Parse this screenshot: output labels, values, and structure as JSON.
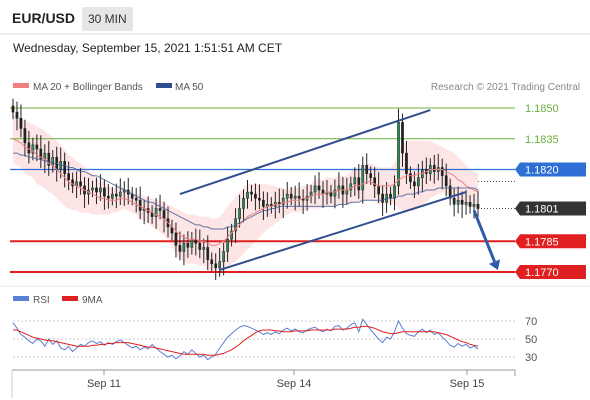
{
  "header": {
    "symbol": "EUR/USD",
    "timeframe": "30 MIN"
  },
  "subheader": {
    "datetime": "Wednesday, September 15, 2021 1:51:51 AM CET"
  },
  "legend_top": [
    {
      "label": "MA 20 + Bollinger Bands",
      "color": "#f08080"
    },
    {
      "label": "MA 50",
      "color": "#2f4f8f"
    }
  ],
  "credit": "Research © 2021 Trading Central",
  "legend_bottom": [
    {
      "label": "RSI",
      "color": "#5b7fd6"
    },
    {
      "label": "9MA",
      "color": "#e02020"
    }
  ],
  "colors": {
    "resistance": "#6aaf3a",
    "pivot": "#2e6fd6",
    "support": "#e02020",
    "price": "#333333"
  },
  "chart_data": [
    {
      "type": "candlestick",
      "x_ticks": [
        "Sep 11",
        "Sep 14",
        "Sep 15"
      ],
      "ylim": [
        1.1765,
        1.1855
      ],
      "levels": [
        {
          "value": 1.185,
          "label": "1.1850",
          "kind": "resistance"
        },
        {
          "value": 1.1835,
          "label": "1.1835",
          "kind": "resistance"
        },
        {
          "value": 1.182,
          "label": "1.1820",
          "kind": "pivot"
        },
        {
          "value": 1.1785,
          "label": "1.1785",
          "kind": "support"
        },
        {
          "value": 1.177,
          "label": "1.1770",
          "kind": "support"
        }
      ],
      "last_price": {
        "value": 1.1801,
        "label": "1.1801"
      },
      "closes": [
        1.1848,
        1.1845,
        1.184,
        1.1833,
        1.1828,
        1.1832,
        1.183,
        1.1825,
        1.1828,
        1.1822,
        1.1826,
        1.182,
        1.1824,
        1.1818,
        1.1815,
        1.1812,
        1.1814,
        1.1812,
        1.1808,
        1.181,
        1.1811,
        1.1809,
        1.1811,
        1.1807,
        1.1806,
        1.1808,
        1.1807,
        1.1809,
        1.181,
        1.1808,
        1.1806,
        1.1805,
        1.18,
        1.1801,
        1.1799,
        1.1797,
        1.1801,
        1.18,
        1.1796,
        1.1792,
        1.1789,
        1.1783,
        1.178,
        1.1784,
        1.1782,
        1.1786,
        1.1784,
        1.1781,
        1.1782,
        1.1776,
        1.1774,
        1.1772,
        1.1775,
        1.178,
        1.1786,
        1.179,
        1.1796,
        1.1801,
        1.1806,
        1.1809,
        1.1808,
        1.1806,
        1.1805,
        1.1802,
        1.1803,
        1.1802,
        1.1804,
        1.1803,
        1.1806,
        1.1808,
        1.1806,
        1.1807,
        1.1806,
        1.1805,
        1.1807,
        1.1809,
        1.1812,
        1.181,
        1.1808,
        1.1809,
        1.1807,
        1.181,
        1.1812,
        1.1808,
        1.181,
        1.1813,
        1.1816,
        1.181,
        1.1822,
        1.1818,
        1.1816,
        1.1812,
        1.1808,
        1.1804,
        1.1808,
        1.1806,
        1.1812,
        1.1843,
        1.1828,
        1.1818,
        1.1814,
        1.1812,
        1.1816,
        1.182,
        1.1818,
        1.1822,
        1.1819,
        1.1821,
        1.1817,
        1.1812,
        1.1806,
        1.1803,
        1.1805,
        1.1803,
        1.1804,
        1.1802,
        1.1803,
        1.1801
      ],
      "ma20": [
        1.1835,
        1.1834,
        1.1833,
        1.1831,
        1.183,
        1.1829,
        1.1827,
        1.1826,
        1.1825,
        1.1823,
        1.1822,
        1.182,
        1.1818,
        1.1816,
        1.1814,
        1.1813,
        1.1812,
        1.1811,
        1.181,
        1.1809,
        1.1808,
        1.1807,
        1.1806,
        1.1806,
        1.1805,
        1.1805,
        1.1805,
        1.1806,
        1.1806,
        1.1805,
        1.1804,
        1.1803,
        1.1802,
        1.1801,
        1.18,
        1.1799,
        1.1798,
        1.1797,
        1.1796,
        1.1794,
        1.1792,
        1.179,
        1.1788,
        1.1787,
        1.1786,
        1.1786,
        1.1786,
        1.1785,
        1.1785,
        1.1784,
        1.1783,
        1.1783,
        1.1784,
        1.1785,
        1.1787,
        1.1789,
        1.1791,
        1.1793,
        1.1795,
        1.1797,
        1.1798,
        1.1799,
        1.18,
        1.1801,
        1.1802,
        1.1802,
        1.1803,
        1.1803,
        1.1804,
        1.1804,
        1.1805,
        1.1805,
        1.1805,
        1.1806,
        1.1806,
        1.1807,
        1.1808,
        1.1808,
        1.1808,
        1.1809,
        1.1809,
        1.1809,
        1.181,
        1.181,
        1.181,
        1.1811,
        1.1812,
        1.1812,
        1.1813,
        1.1814,
        1.1814,
        1.1813,
        1.1812,
        1.1812,
        1.1812,
        1.1812,
        1.1813,
        1.1815,
        1.1816,
        1.1817,
        1.1817,
        1.1817,
        1.1818,
        1.1818,
        1.1819,
        1.182,
        1.182,
        1.182,
        1.182,
        1.1819,
        1.1818,
        1.1817,
        1.1815,
        1.1814,
        1.1812,
        1.1811,
        1.181,
        1.1809
      ],
      "bb_width": [
        0.0012,
        0.0012,
        0.0012,
        0.0013,
        0.0013,
        0.0013,
        0.0014,
        0.0014,
        0.0014,
        0.0014,
        0.0014,
        0.0014,
        0.0014,
        0.0014,
        0.0013,
        0.0013,
        0.0012,
        0.0012,
        0.0011,
        0.001,
        0.001,
        0.0009,
        0.0008,
        0.0008,
        0.0007,
        0.0006,
        0.0006,
        0.0006,
        0.0005,
        0.0005,
        0.0005,
        0.0005,
        0.0006,
        0.0006,
        0.0006,
        0.0007,
        0.0007,
        0.0008,
        0.0008,
        0.0009,
        0.001,
        0.0011,
        0.0012,
        0.0012,
        0.0012,
        0.0012,
        0.0012,
        0.0012,
        0.0012,
        0.0013,
        0.0013,
        0.0013,
        0.0013,
        0.0014,
        0.0015,
        0.0015,
        0.0016,
        0.0016,
        0.0016,
        0.0016,
        0.0015,
        0.0014,
        0.0013,
        0.0012,
        0.0011,
        0.001,
        0.0009,
        0.0008,
        0.0007,
        0.0006,
        0.0006,
        0.0006,
        0.0006,
        0.0006,
        0.0006,
        0.0006,
        0.0007,
        0.0007,
        0.0007,
        0.0007,
        0.0007,
        0.0007,
        0.0007,
        0.0007,
        0.0007,
        0.0008,
        0.0008,
        0.0008,
        0.0009,
        0.0009,
        0.0009,
        0.0009,
        0.0009,
        0.0009,
        0.0009,
        0.0009,
        0.001,
        0.0014,
        0.0016,
        0.0017,
        0.0017,
        0.0017,
        0.0016,
        0.0016,
        0.0015,
        0.0014,
        0.0013,
        0.0012,
        0.0011,
        0.0011,
        0.0011,
        0.0011,
        0.0011,
        0.001,
        0.001,
        0.0009,
        0.0009,
        0.0009
      ],
      "ma50": [
        1.1828,
        1.1828,
        1.1827,
        1.1827,
        1.1826,
        1.1826,
        1.1825,
        1.1825,
        1.1824,
        1.1824,
        1.1823,
        1.1823,
        1.1822,
        1.1822,
        1.1821,
        1.1821,
        1.182,
        1.1819,
        1.1819,
        1.1818,
        1.1817,
        1.1817,
        1.1816,
        1.1815,
        1.1814,
        1.1813,
        1.1812,
        1.1811,
        1.181,
        1.1809,
        1.1808,
        1.1807,
        1.1806,
        1.1805,
        1.1804,
        1.1804,
        1.1803,
        1.1802,
        1.1801,
        1.18,
        1.1799,
        1.1798,
        1.1797,
        1.1796,
        1.1795,
        1.1794,
        1.1793,
        1.1793,
        1.1792,
        1.1792,
        1.1791,
        1.1791,
        1.1791,
        1.1791,
        1.1792,
        1.1792,
        1.1793,
        1.1794,
        1.1795,
        1.1796,
        1.1797,
        1.1798,
        1.1799,
        1.18,
        1.18,
        1.1801,
        1.1801,
        1.1802,
        1.1802,
        1.1802,
        1.1802,
        1.1802,
        1.1802,
        1.1802,
        1.1802,
        1.1802,
        1.1802,
        1.1802,
        1.1802,
        1.1802,
        1.1802,
        1.1802,
        1.1803,
        1.1803,
        1.1803,
        1.1804,
        1.1804,
        1.1804,
        1.1805,
        1.1805,
        1.1805,
        1.1805,
        1.1805,
        1.1805,
        1.1806,
        1.1806,
        1.1806,
        1.1807,
        1.1807,
        1.1808,
        1.1808,
        1.1808,
        1.1809,
        1.1809,
        1.181,
        1.181,
        1.181,
        1.1811,
        1.1811,
        1.1811,
        1.1811,
        1.1811,
        1.1811,
        1.1811,
        1.1811,
        1.1811,
        1.1811,
        1.181
      ],
      "channel": [
        {
          "from": {
            "i": 42,
            "v": 1.1808
          },
          "to": {
            "i": 105,
            "v": 1.1849
          }
        },
        {
          "from": {
            "i": 52,
            "v": 1.1771
          },
          "to": {
            "i": 114,
            "v": 1.1809
          }
        }
      ],
      "forecast_arrow": {
        "from": {
          "i": 116,
          "v": 1.18
        },
        "to": {
          "i": 122,
          "v": 1.1771
        }
      }
    },
    {
      "type": "line",
      "yticks": [
        70,
        50,
        30
      ],
      "ylim": [
        20,
        80
      ],
      "series": [
        {
          "name": "RSI",
          "values": [
            68,
            62,
            55,
            52,
            48,
            45,
            50,
            48,
            42,
            50,
            44,
            48,
            40,
            38,
            42,
            36,
            40,
            44,
            42,
            46,
            48,
            45,
            47,
            43,
            46,
            44,
            47,
            49,
            46,
            43,
            40,
            42,
            38,
            41,
            39,
            44,
            40,
            36,
            33,
            30,
            32,
            28,
            31,
            36,
            33,
            38,
            34,
            30,
            32,
            27,
            30,
            33,
            40,
            46,
            52,
            56,
            60,
            63,
            65,
            64,
            62,
            60,
            58,
            55,
            57,
            55,
            58,
            56,
            60,
            62,
            59,
            61,
            58,
            57,
            60,
            62,
            63,
            60,
            58,
            61,
            59,
            64,
            65,
            60,
            62,
            66,
            68,
            58,
            72,
            66,
            60,
            55,
            50,
            46,
            52,
            50,
            58,
            70,
            62,
            56,
            54,
            53,
            58,
            61,
            57,
            60,
            55,
            57,
            52,
            48,
            43,
            41,
            45,
            42,
            44,
            40,
            42,
            39
          ]
        },
        {
          "name": "9MA",
          "values": [
            60,
            60,
            58,
            56,
            54,
            52,
            51,
            50,
            49,
            48,
            48,
            47,
            46,
            45,
            44,
            43,
            42,
            42,
            42,
            42,
            43,
            43,
            44,
            44,
            45,
            45,
            46,
            46,
            46,
            46,
            45,
            44,
            43,
            42,
            41,
            41,
            40,
            39,
            38,
            37,
            36,
            35,
            34,
            33,
            33,
            33,
            33,
            33,
            33,
            32,
            32,
            32,
            33,
            34,
            36,
            38,
            41,
            44,
            48,
            51,
            54,
            57,
            59,
            60,
            60,
            60,
            59,
            59,
            58,
            58,
            58,
            59,
            59,
            59,
            59,
            60,
            60,
            60,
            60,
            60,
            60,
            61,
            61,
            61,
            61,
            62,
            63,
            63,
            64,
            64,
            63,
            62,
            60,
            58,
            57,
            56,
            56,
            57,
            58,
            58,
            58,
            58,
            58,
            58,
            58,
            58,
            58,
            57,
            56,
            55,
            53,
            51,
            49,
            47,
            46,
            44,
            43,
            42
          ]
        }
      ]
    }
  ]
}
